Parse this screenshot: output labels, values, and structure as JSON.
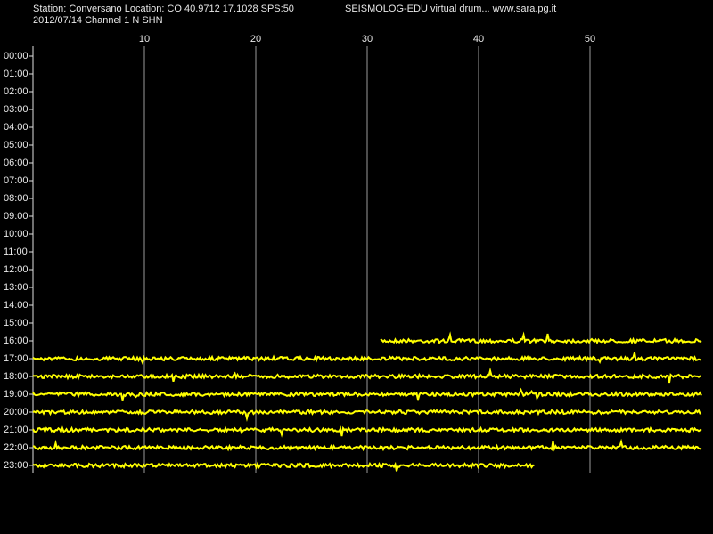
{
  "chart_data": {
    "type": "drum",
    "title": "Station: Conversano Location: CO 40.9712 17.1028 SPS:50",
    "subtitle": "SEISMOLOG-EDU virtual drum... www.sara.pg.it",
    "date_channel": "2012/07/14  Channel 1 N SHN",
    "xlim": [
      0,
      60
    ],
    "xticks": [
      10,
      20,
      30,
      40,
      50
    ],
    "categories": [
      "00:00",
      "01:00",
      "02:00",
      "03:00",
      "04:00",
      "05:00",
      "06:00",
      "07:00",
      "08:00",
      "09:00",
      "10:00",
      "11:00",
      "12:00",
      "13:00",
      "14:00",
      "15:00",
      "16:00",
      "17:00",
      "18:00",
      "19:00",
      "20:00",
      "21:00",
      "22:00",
      "23:00"
    ],
    "trace_start": [
      null,
      null,
      null,
      null,
      null,
      null,
      null,
      null,
      null,
      null,
      null,
      null,
      null,
      null,
      null,
      null,
      31.2,
      0,
      0,
      0,
      0,
      0,
      0,
      0
    ],
    "trace_end": [
      null,
      null,
      null,
      null,
      null,
      null,
      null,
      null,
      null,
      null,
      null,
      null,
      null,
      null,
      null,
      null,
      60,
      60,
      60,
      60,
      60,
      60,
      60,
      45
    ],
    "color": "#ffff00"
  }
}
